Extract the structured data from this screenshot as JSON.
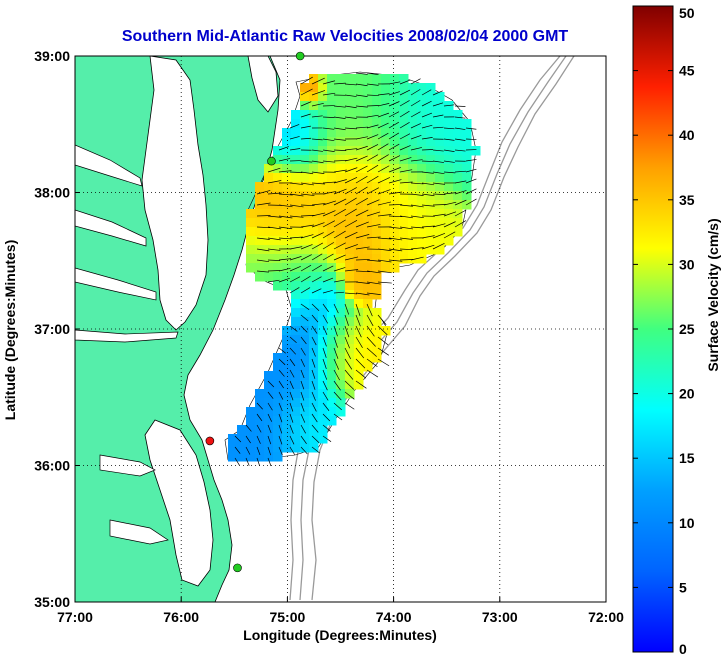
{
  "chart_data": {
    "type": "heatmap",
    "title": "Southern Mid-Atlantic Raw Velocities 2008/02/04 2000 GMT",
    "xlabel": "Longitude (Degrees:Minutes)",
    "ylabel": "Latitude (Degrees:Minutes)",
    "xlim": [
      -77,
      -72
    ],
    "ylim": [
      35,
      39
    ],
    "x_ticks": [
      {
        "value": -77,
        "label": "77:00"
      },
      {
        "value": -76,
        "label": "76:00"
      },
      {
        "value": -75,
        "label": "75:00"
      },
      {
        "value": -74,
        "label": "74:00"
      },
      {
        "value": -73,
        "label": "73:00"
      },
      {
        "value": -72,
        "label": "72:00"
      }
    ],
    "y_ticks": [
      {
        "value": 35,
        "label": "35:00"
      },
      {
        "value": 36,
        "label": "36:00"
      },
      {
        "value": 37,
        "label": "37:00"
      },
      {
        "value": 38,
        "label": "38:00"
      },
      {
        "value": 39,
        "label": "39:00"
      }
    ],
    "grid": true,
    "colorbar": {
      "label": "Surface Velocity (cm/s)",
      "range": [
        0,
        50
      ],
      "ticks": [
        "0",
        "5",
        "10",
        "15",
        "20",
        "25",
        "30",
        "35",
        "40",
        "45",
        "50"
      ],
      "colormap": "jet"
    },
    "land_color": "#55eeaa",
    "water_color": "#ffffff",
    "speed_blobs": [
      {
        "lon": -74.8,
        "lat": 38.75,
        "speed": 42,
        "spread": 0.1
      },
      {
        "lon": -75.0,
        "lat": 38.45,
        "speed": 16,
        "spread": 0.25
      },
      {
        "lon": -74.3,
        "lat": 38.55,
        "speed": 26,
        "spread": 0.45
      },
      {
        "lon": -73.7,
        "lat": 38.5,
        "speed": 20,
        "spread": 0.35
      },
      {
        "lon": -75.1,
        "lat": 37.9,
        "speed": 36,
        "spread": 0.3
      },
      {
        "lon": -74.3,
        "lat": 37.95,
        "speed": 36,
        "spread": 0.35
      },
      {
        "lon": -73.85,
        "lat": 37.9,
        "speed": 31,
        "spread": 0.3
      },
      {
        "lon": -75.1,
        "lat": 37.4,
        "speed": 27,
        "spread": 0.35
      },
      {
        "lon": -74.3,
        "lat": 37.35,
        "speed": 36,
        "spread": 0.12
      },
      {
        "lon": -74.9,
        "lat": 36.9,
        "speed": 10,
        "spread": 0.35
      },
      {
        "lon": -74.45,
        "lat": 36.8,
        "speed": 33,
        "spread": 0.25
      },
      {
        "lon": -75.2,
        "lat": 36.4,
        "speed": 11,
        "spread": 0.4
      },
      {
        "lon": -74.8,
        "lat": 36.3,
        "speed": 19,
        "spread": 0.25
      }
    ],
    "stations": [
      {
        "lon": -74.88,
        "lat": 39.0,
        "status": "active",
        "color": "#22cc22"
      },
      {
        "lon": -75.15,
        "lat": 38.23,
        "status": "active",
        "color": "#22cc22"
      },
      {
        "lon": -75.73,
        "lat": 36.18,
        "status": "inactive",
        "color": "#ee1111"
      },
      {
        "lon": -75.47,
        "lat": 35.25,
        "status": "active",
        "color": "#22cc22"
      }
    ]
  }
}
